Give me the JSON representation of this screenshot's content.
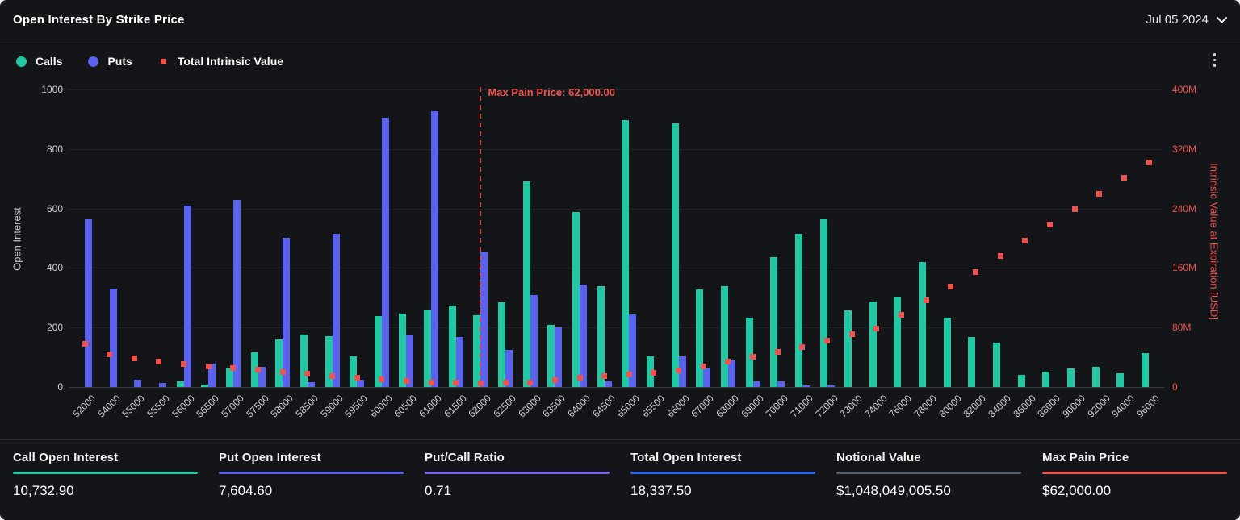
{
  "header": {
    "title": "Open Interest By Strike Price",
    "date": "Jul 05 2024"
  },
  "legend": [
    {
      "label": "Calls",
      "color": "#22c8a3",
      "shape": "circle"
    },
    {
      "label": "Puts",
      "color": "#5a62ee",
      "shape": "circle"
    },
    {
      "label": "Total Intrinsic Value",
      "color": "#ef5350",
      "shape": "square"
    }
  ],
  "chart_data": {
    "type": "bar",
    "title": "Open Interest By Strike Price",
    "grid": true,
    "legend_position": "top-left",
    "categories": [
      "52000",
      "54000",
      "55000",
      "55500",
      "56000",
      "56500",
      "57000",
      "57500",
      "58000",
      "58500",
      "59000",
      "59500",
      "60000",
      "60500",
      "61000",
      "61500",
      "62000",
      "62500",
      "63000",
      "63500",
      "64000",
      "64500",
      "65000",
      "65500",
      "66000",
      "67000",
      "68000",
      "69000",
      "70000",
      "71000",
      "72000",
      "73000",
      "74000",
      "76000",
      "78000",
      "80000",
      "82000",
      "84000",
      "86000",
      "88000",
      "90000",
      "92000",
      "94000",
      "96000"
    ],
    "series": [
      {
        "name": "Calls",
        "type": "bar",
        "y_axis": "left",
        "color": "#22c8a3",
        "values": [
          0,
          0,
          0,
          0,
          20,
          7,
          65,
          116,
          160,
          175,
          170,
          104,
          238,
          248,
          259,
          275,
          240,
          286,
          692,
          210,
          588,
          338,
          896,
          104,
          886,
          327,
          340,
          233,
          436,
          515,
          565,
          258,
          287,
          303,
          420,
          232,
          168,
          148,
          40,
          52,
          62,
          68,
          45,
          113
        ]
      },
      {
        "name": "Puts",
        "type": "bar",
        "y_axis": "left",
        "color": "#5a62ee",
        "values": [
          565,
          332,
          25,
          13,
          611,
          79,
          628,
          68,
          501,
          16,
          515,
          25,
          905,
          174,
          928,
          169,
          456,
          125,
          310,
          202,
          345,
          20,
          243,
          0,
          103,
          66,
          90,
          20,
          18,
          6,
          6,
          0,
          0,
          0,
          0,
          0,
          0,
          0,
          0,
          0,
          0,
          0,
          0,
          0
        ]
      },
      {
        "name": "Total Intrinsic Value",
        "type": "scatter",
        "y_axis": "right",
        "color": "#ef5350",
        "values_musd": [
          58,
          44,
          38,
          34,
          31,
          28,
          26,
          23.5,
          20.5,
          18,
          15,
          12.5,
          10,
          8,
          6.5,
          5.5,
          4.6,
          5.5,
          6.5,
          9,
          12,
          14.5,
          16.5,
          19.5,
          22.5,
          28,
          34,
          41,
          47,
          54,
          62,
          71,
          79,
          97,
          117,
          135,
          155,
          176,
          197,
          218,
          239,
          260,
          281,
          302
        ]
      }
    ],
    "left_axis": {
      "label": "Open Interest",
      "range": [
        0,
        1000
      ],
      "ticks": [
        0,
        200,
        400,
        600,
        800,
        1000
      ]
    },
    "right_axis": {
      "label": "Intrinsic Value at Expiration [USD]",
      "range_musd": [
        0,
        400
      ],
      "tick_labels": [
        "0",
        "80M",
        "160M",
        "240M",
        "320M",
        "400M"
      ]
    },
    "annotation": {
      "text": "Max Pain Price: 62,000.00",
      "strike": "62000"
    }
  },
  "stats": [
    {
      "label": "Call Open Interest",
      "value": "10,732.90",
      "color": "#22c8a3"
    },
    {
      "label": "Put Open Interest",
      "value": "7,604.60",
      "color": "#5a62ee"
    },
    {
      "label": "Put/Call Ratio",
      "value": "0.71",
      "color": "#7a66ea"
    },
    {
      "label": "Total Open Interest",
      "value": "18,337.50",
      "color": "#2d66e8"
    },
    {
      "label": "Notional Value",
      "value": "$1,048,049,005.50",
      "color": "#566271"
    },
    {
      "label": "Max Pain Price",
      "value": "$62,000.00",
      "color": "#ef5350"
    }
  ]
}
